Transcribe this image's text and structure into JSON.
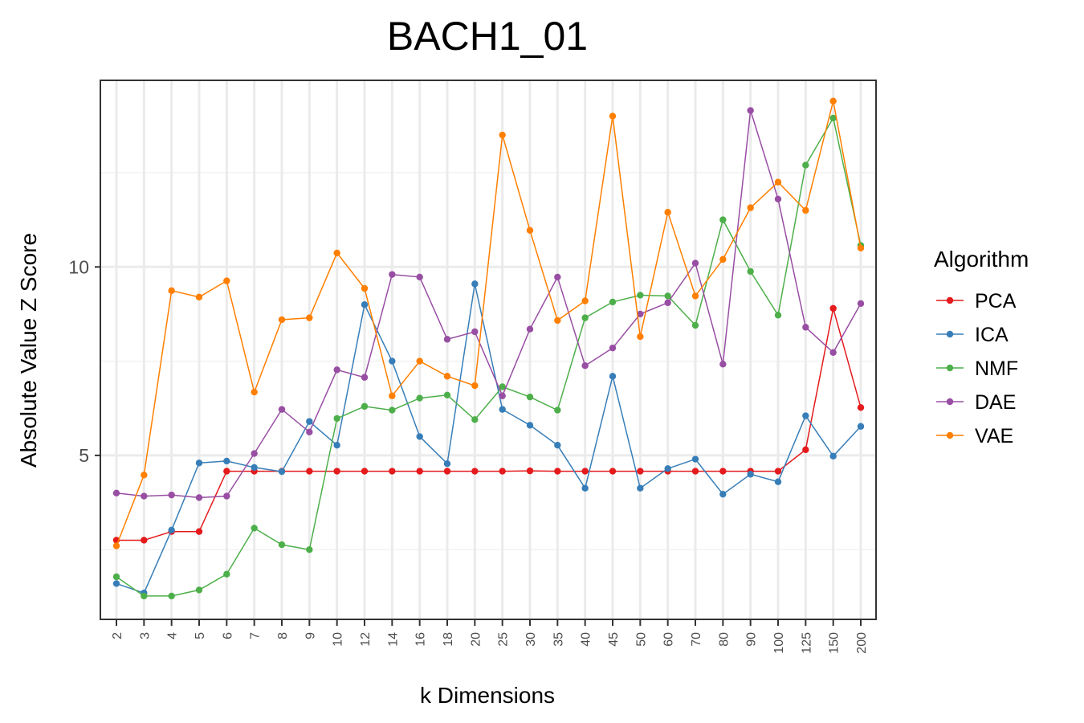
{
  "chart_data": {
    "type": "line",
    "title": "BACH1_01",
    "xlabel": "k Dimensions",
    "ylabel": "Absolute Value Z Score",
    "ylim": [
      0.65,
      14.95
    ],
    "yticks": [
      5,
      10
    ],
    "grid": true,
    "legend_title": "Algorithm",
    "legend_position": "right",
    "categories": [
      "2",
      "3",
      "4",
      "5",
      "6",
      "7",
      "8",
      "9",
      "10",
      "12",
      "14",
      "16",
      "18",
      "20",
      "25",
      "30",
      "35",
      "40",
      "45",
      "50",
      "60",
      "70",
      "80",
      "90",
      "100",
      "125",
      "150",
      "200"
    ],
    "series": [
      {
        "name": "PCA",
        "color": "#e41a1c",
        "values": [
          2.75,
          2.75,
          2.98,
          2.98,
          4.58,
          4.58,
          4.58,
          4.58,
          4.58,
          4.58,
          4.58,
          4.58,
          4.58,
          4.58,
          4.58,
          4.59,
          4.58,
          4.58,
          4.58,
          4.58,
          4.58,
          4.58,
          4.58,
          4.58,
          4.58,
          5.15,
          8.9,
          6.27
        ]
      },
      {
        "name": "ICA",
        "color": "#377eb8",
        "values": [
          1.6,
          1.35,
          3.02,
          4.8,
          4.85,
          4.68,
          4.57,
          5.9,
          5.27,
          9.0,
          7.5,
          5.5,
          4.78,
          9.55,
          6.22,
          5.8,
          5.27,
          4.13,
          7.1,
          4.13,
          4.65,
          4.9,
          3.97,
          4.5,
          4.3,
          6.05,
          4.98,
          5.77
        ]
      },
      {
        "name": "NMF",
        "color": "#4daf4a",
        "values": [
          1.78,
          1.27,
          1.27,
          1.43,
          1.85,
          3.07,
          2.63,
          2.5,
          5.98,
          6.3,
          6.2,
          6.52,
          6.6,
          5.95,
          6.82,
          6.55,
          6.2,
          8.65,
          9.07,
          9.25,
          9.23,
          8.45,
          11.25,
          9.88,
          8.72,
          12.7,
          13.95,
          10.57
        ]
      },
      {
        "name": "DAE",
        "color": "#984ea3",
        "values": [
          4.0,
          3.92,
          3.95,
          3.88,
          3.92,
          5.05,
          6.22,
          5.62,
          7.27,
          7.07,
          9.8,
          9.73,
          8.08,
          8.28,
          6.58,
          8.35,
          9.73,
          7.38,
          7.85,
          8.75,
          9.05,
          10.1,
          7.42,
          14.15,
          11.8,
          8.4,
          7.73,
          9.03
        ]
      },
      {
        "name": "VAE",
        "color": "#ff7f00",
        "values": [
          2.6,
          4.48,
          9.37,
          9.2,
          9.63,
          6.68,
          8.6,
          8.65,
          10.37,
          9.43,
          6.58,
          7.5,
          7.1,
          6.85,
          13.5,
          10.97,
          8.58,
          9.1,
          14.0,
          8.15,
          11.45,
          9.23,
          10.2,
          11.57,
          12.25,
          11.5,
          14.4,
          10.5
        ]
      }
    ]
  }
}
